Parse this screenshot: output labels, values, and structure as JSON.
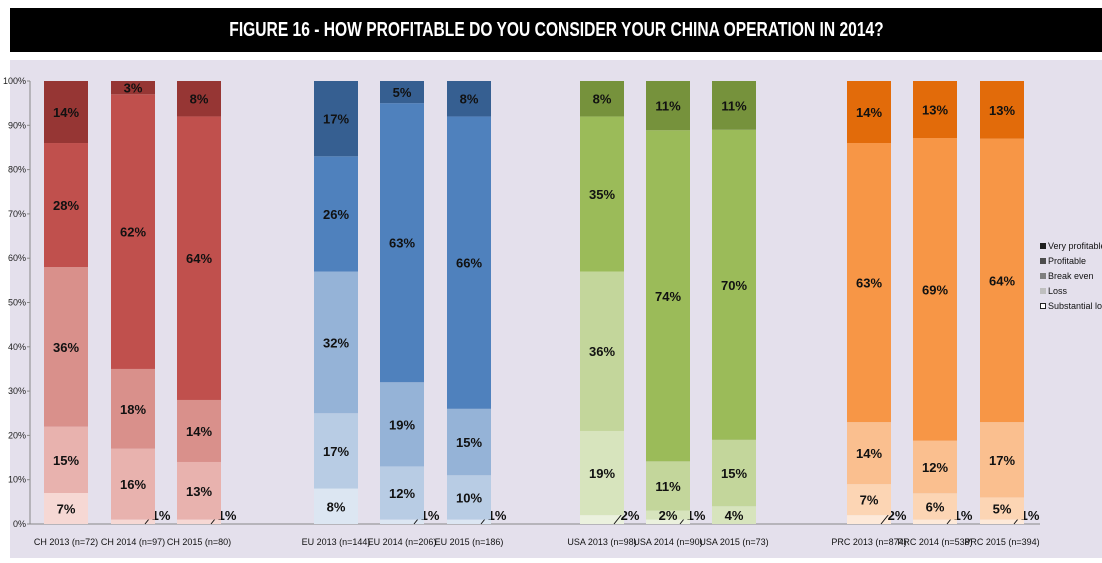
{
  "chart_data": {
    "type": "bar",
    "stacked": true,
    "title": "FIGURE 16 -  HOW PROFITABLE DO YOU CONSIDER YOUR CHINA OPERATION IN 2014?",
    "ylim": [
      0,
      100
    ],
    "yticks": [
      "0%",
      "10%",
      "20%",
      "30%",
      "40%",
      "50%",
      "60%",
      "70%",
      "80%",
      "90%",
      "100%"
    ],
    "legend_position": "right",
    "series_names": [
      "Very profitable",
      "Profitable",
      "Break even",
      "Loss",
      "Substantial loss"
    ],
    "categories": [
      "CH 2013 (n=72)",
      "CH 2014 (n=97)",
      "CH 2015 (n=80)",
      "EU 2013 (n=144)",
      "EU 2014 (n=206)",
      "EU 2015 (n=186)",
      "USA 2013 (n=98)",
      "USA 2014 (n=90)",
      "USA 2015 (n=73)",
      "PRC 2013 (n=874)",
      "PRC 2014 (n=538)",
      "PRC 2015 (n=394)"
    ],
    "series": [
      {
        "name": "Substantial loss",
        "values": [
          0,
          1,
          1,
          0,
          1,
          1,
          2,
          1,
          0,
          2,
          1,
          1
        ],
        "labels": [
          "",
          "1%",
          "1%",
          "",
          "1%",
          "1%",
          "2%",
          "1%",
          "",
          "2%",
          "1%",
          "1%"
        ]
      },
      {
        "name": "Loss",
        "values": [
          7,
          16,
          13,
          8,
          12,
          10,
          19,
          2,
          4,
          7,
          6,
          5
        ],
        "labels": [
          "7%",
          "16%",
          "13%",
          "8%",
          "12%",
          "10%",
          "19%",
          "2%",
          "4%",
          "7%",
          "6%",
          "5%"
        ]
      },
      {
        "name": "Break even",
        "values": [
          15,
          18,
          14,
          17,
          19,
          15,
          36,
          11,
          15,
          14,
          12,
          17
        ],
        "labels": [
          "15%",
          "18%",
          "14%",
          "17%",
          "19%",
          "15%",
          "36%",
          "11%",
          "15%",
          "14%",
          "12%",
          "17%"
        ]
      },
      {
        "name": "Profitable",
        "values": [
          36,
          62,
          64,
          32,
          63,
          66,
          35,
          74,
          70,
          63,
          69,
          64
        ],
        "labels": [
          "36%",
          "62%",
          "64%",
          "32%",
          "63%",
          "66%",
          "35%",
          "74%",
          "70%",
          "63%",
          "69%",
          "64%"
        ]
      },
      {
        "name": "Very profitable",
        "values": [
          28,
          3,
          8,
          26,
          5,
          8,
          8,
          11,
          11,
          14,
          13,
          13
        ],
        "labels": [
          "28%",
          "3%",
          "8%",
          "26%",
          "5%",
          "8%",
          "8%",
          "11%",
          "11%",
          "14%",
          "13%",
          "13%"
        ]
      }
    ],
    "extra_top_segment": {
      "values": [
        14,
        0,
        0,
        17,
        0,
        0,
        0,
        0,
        0,
        0,
        0,
        0
      ],
      "labels": [
        "14%",
        "",
        "",
        "17%",
        "",
        "",
        "",
        "",
        "",
        "",
        "",
        ""
      ]
    },
    "colors": {
      "CH": [
        "#f6d8d4",
        "#e8b2ae",
        "#d9908b",
        "#c0504d",
        "#963634"
      ],
      "EU": [
        "#dce6f2",
        "#b8cce4",
        "#95b3d7",
        "#4f81bd",
        "#365f91"
      ],
      "USA": [
        "#ebf1de",
        "#d7e4bd",
        "#c3d69b",
        "#9bbb59",
        "#76923c"
      ],
      "PRC": [
        "#fde9d9",
        "#fcd5b4",
        "#fabf8f",
        "#f79646",
        "#e26b0a"
      ]
    },
    "legend_colors": [
      "#1f1f1f",
      "#4d4d4d",
      "#7f7f7f",
      "#bfbfbf",
      "#ffffff"
    ]
  }
}
